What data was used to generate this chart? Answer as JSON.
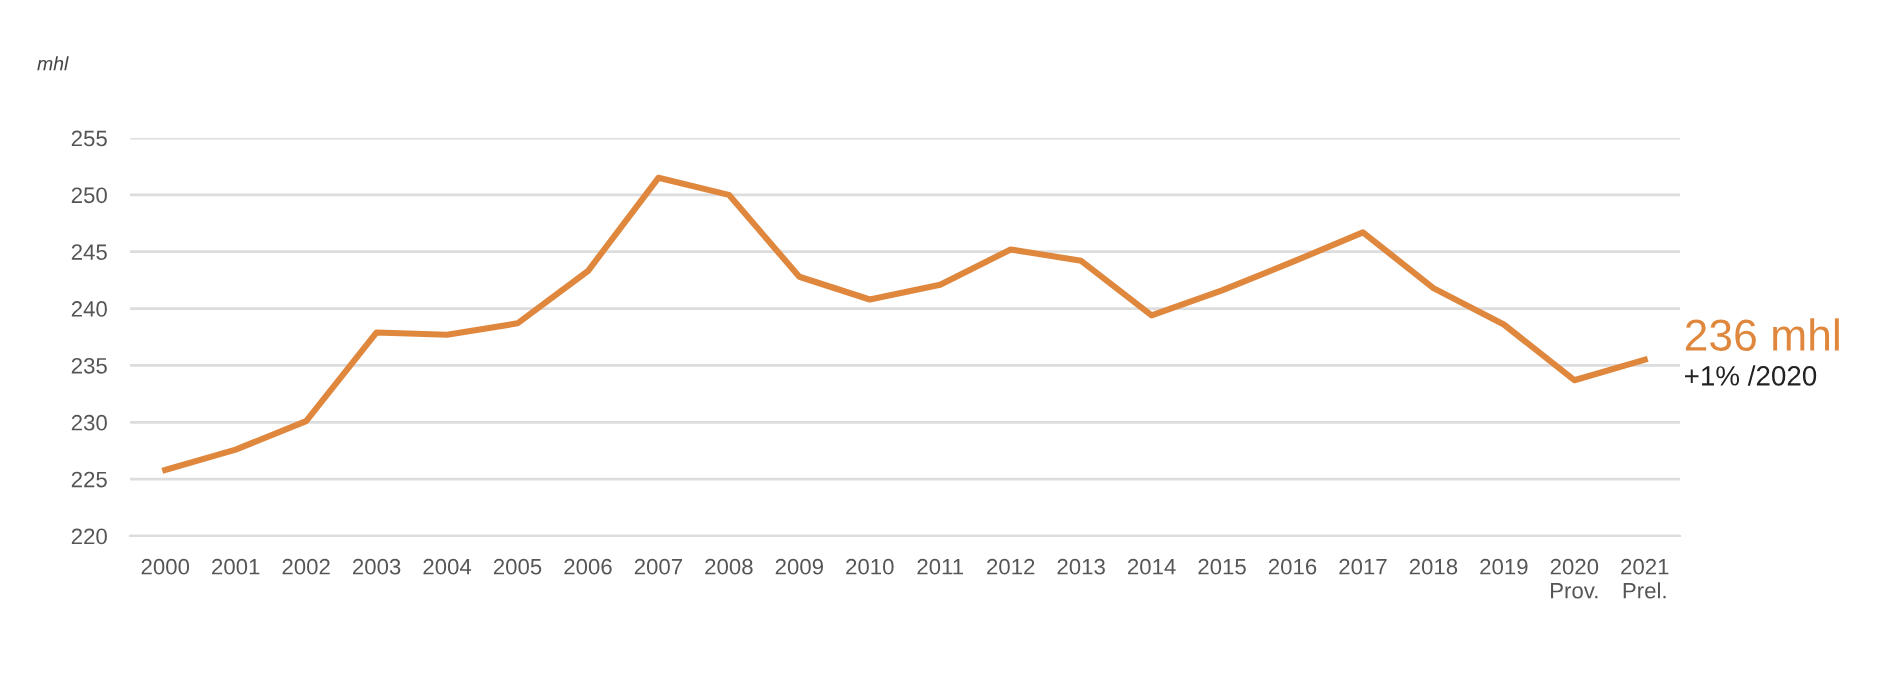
{
  "chart_data": {
    "type": "line",
    "ylabel": "mhl",
    "categories": [
      "2000",
      "2001",
      "2002",
      "2003",
      "2004",
      "2005",
      "2006",
      "2007",
      "2008",
      "2009",
      "2010",
      "2011",
      "2012",
      "2013",
      "2014",
      "2015",
      "2016",
      "2017",
      "2018",
      "2019",
      "2020\nProv.",
      "2021\nPrel."
    ],
    "series": [
      {
        "color": "#e0873e",
        "values": [
          225.8,
          227.6,
          230.1,
          237.9,
          237.7,
          238.7,
          243.3,
          251.5,
          250.0,
          242.8,
          240.8,
          242.1,
          245.2,
          244.2,
          239.4,
          241.6,
          244.1,
          246.7,
          241.8,
          238.6,
          233.7,
          235.5
        ]
      }
    ],
    "ylim": [
      220,
      255
    ],
    "yticks": [
      220,
      225,
      230,
      235,
      240,
      245,
      250,
      255
    ],
    "grid": "y",
    "legend": false,
    "marker": "none",
    "line_style": "solid",
    "annotations": [
      "236 mhl",
      "+1% /2020"
    ]
  }
}
